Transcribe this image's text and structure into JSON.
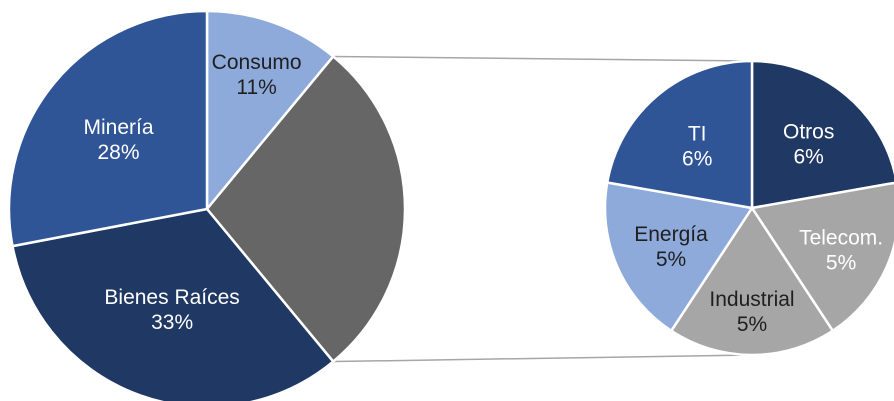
{
  "chart_data": [
    {
      "type": "pie",
      "slices": [
        {
          "label": "Consumo",
          "value": 11,
          "value_label": "11%",
          "color": "#8eaadb",
          "text_color": "#1f1f1f"
        },
        {
          "label": "",
          "value": 28,
          "value_label": "",
          "color": "#666666",
          "text_color": "#ffffff"
        },
        {
          "label": "Bienes Raíces",
          "value": 33,
          "value_label": "33%",
          "color": "#1f3864",
          "text_color": "#ffffff"
        },
        {
          "label": "Minería",
          "value": 28,
          "value_label": "28%",
          "color": "#2f5597",
          "text_color": "#ffffff"
        }
      ]
    },
    {
      "type": "pie",
      "slices": [
        {
          "label": "Otros",
          "value": 6,
          "value_label": "6%",
          "color": "#1f3864",
          "text_color": "#ffffff"
        },
        {
          "label": "Telecom.",
          "value": 5,
          "value_label": "5%",
          "color": "#a6a6a6",
          "text_color": "#ffffff"
        },
        {
          "label": "Industrial",
          "value": 5,
          "value_label": "5%",
          "color": "#a6a6a6",
          "text_color": "#1f1f1f"
        },
        {
          "label": "Energía",
          "value": 5,
          "value_label": "5%",
          "color": "#8eaadb",
          "text_color": "#1f1f1f"
        },
        {
          "label": "TI",
          "value": 6,
          "value_label": "6%",
          "color": "#2f5597",
          "text_color": "#ffffff"
        }
      ]
    }
  ],
  "colors": {
    "connector": "#a6a6a6",
    "slice_border": "#ffffff"
  }
}
